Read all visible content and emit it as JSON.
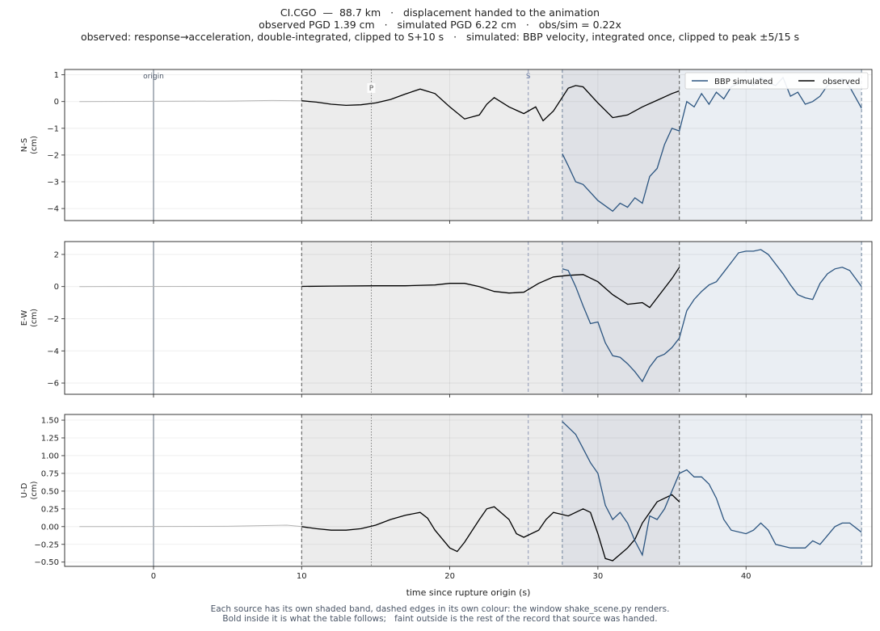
{
  "header": {
    "line1": "CI.CGO  —  88.7 km   ·   displacement handed to the animation",
    "line2": "observed PGD 1.39 cm   ·   simulated PGD 6.22 cm   ·   obs/sim = 0.22x",
    "line3": "observed: response→acceleration, double-integrated, clipped to S+10 s   ·   simulated: BBP velocity, integrated once, clipped to peak ±5/15 s"
  },
  "footer": {
    "line1": "Each source has its own shaded band, dashed edges in its own colour: the window shake_scene.py renders.",
    "line2": "Bold inside it is what the table follows;   faint outside is the rest of the record that source was handed."
  },
  "colors": {
    "simulated": "#2c5580",
    "observed": "#000000",
    "observed_band": "#ececec",
    "simulated_band": "#eaeef3",
    "overlap_band": "#dfe1e6",
    "origin_line": "#9aa3ad",
    "s_line": "#8f99b5"
  },
  "chart_data": {
    "type": "line",
    "xlabel": "time since rupture origin (s)",
    "xlim": [
      -6,
      48.5
    ],
    "xticks": [
      0,
      10,
      20,
      30,
      40
    ],
    "markers": {
      "origin": {
        "t": 0,
        "label": "origin"
      },
      "P": {
        "t": 14.7,
        "label": "P"
      },
      "S": {
        "t": 25.3,
        "label": "S"
      }
    },
    "windows": {
      "observed": [
        10.0,
        35.5
      ],
      "simulated": [
        27.6,
        47.8
      ]
    },
    "legend": [
      "BBP simulated",
      "observed"
    ],
    "legend_position": "top-right",
    "panels": [
      {
        "name": "N-S",
        "ylabel_line1": "N-S",
        "ylabel_line2": "(cm)",
        "ylim": [
          -4.45,
          1.2
        ],
        "yticks": [
          1,
          0,
          -1,
          -2,
          -3,
          -4
        ],
        "ytick_labels": [
          "1",
          "0",
          "−1",
          "−2",
          "−3",
          "−4"
        ],
        "observed": [
          [
            -5,
            0
          ],
          [
            0,
            0.01
          ],
          [
            5,
            0.02
          ],
          [
            8,
            0.04
          ],
          [
            10,
            0.03
          ],
          [
            11,
            -0.02
          ],
          [
            12,
            -0.1
          ],
          [
            13,
            -0.14
          ],
          [
            14,
            -0.12
          ],
          [
            15,
            -0.05
          ],
          [
            16,
            0.08
          ],
          [
            17,
            0.28
          ],
          [
            18,
            0.47
          ],
          [
            19,
            0.3
          ],
          [
            20,
            -0.2
          ],
          [
            21,
            -0.65
          ],
          [
            22,
            -0.5
          ],
          [
            22.5,
            -0.1
          ],
          [
            23,
            0.15
          ],
          [
            24,
            -0.2
          ],
          [
            25,
            -0.45
          ],
          [
            25.8,
            -0.2
          ],
          [
            26.3,
            -0.72
          ],
          [
            27,
            -0.35
          ],
          [
            28,
            0.5
          ],
          [
            28.5,
            0.6
          ],
          [
            29,
            0.55
          ],
          [
            30,
            -0.05
          ],
          [
            31,
            -0.6
          ],
          [
            32,
            -0.5
          ],
          [
            33,
            -0.2
          ],
          [
            34,
            0.05
          ],
          [
            35,
            0.3
          ],
          [
            35.5,
            0.4
          ]
        ],
        "simulated": [
          [
            27.6,
            -1.95
          ],
          [
            28,
            -2.4
          ],
          [
            28.5,
            -3.0
          ],
          [
            29,
            -3.1
          ],
          [
            29.5,
            -3.4
          ],
          [
            30,
            -3.7
          ],
          [
            30.5,
            -3.9
          ],
          [
            31,
            -4.1
          ],
          [
            31.5,
            -3.8
          ],
          [
            32,
            -3.95
          ],
          [
            32.5,
            -3.6
          ],
          [
            33,
            -3.8
          ],
          [
            33.5,
            -2.8
          ],
          [
            34,
            -2.5
          ],
          [
            34.5,
            -1.6
          ],
          [
            35,
            -1.0
          ],
          [
            35.5,
            -1.1
          ],
          [
            36,
            0
          ],
          [
            36.5,
            -0.2
          ],
          [
            37,
            0.3
          ],
          [
            37.5,
            -0.1
          ],
          [
            38,
            0.35
          ],
          [
            38.5,
            0.1
          ],
          [
            39,
            0.55
          ],
          [
            40,
            0.8
          ],
          [
            40.5,
            0.6
          ],
          [
            41,
            0.9
          ],
          [
            41.5,
            0.7
          ],
          [
            42,
            0.6
          ],
          [
            42.5,
            0.9
          ],
          [
            43,
            0.2
          ],
          [
            43.5,
            0.35
          ],
          [
            44,
            -0.1
          ],
          [
            44.5,
            0
          ],
          [
            45,
            0.2
          ],
          [
            45.5,
            0.6
          ],
          [
            46,
            0.75
          ],
          [
            46.5,
            0.85
          ],
          [
            47,
            0.55
          ],
          [
            47.8,
            -0.25
          ]
        ]
      },
      {
        "name": "E-W",
        "ylabel_line1": "E-W",
        "ylabel_line2": "(cm)",
        "ylim": [
          -6.7,
          2.8
        ],
        "yticks": [
          2,
          0,
          -2,
          -4,
          -6
        ],
        "ytick_labels": [
          "2",
          "0",
          "−2",
          "−4",
          "−6"
        ],
        "observed": [
          [
            -5,
            0
          ],
          [
            5,
            0.01
          ],
          [
            10,
            0.01
          ],
          [
            12,
            0.03
          ],
          [
            15,
            0.05
          ],
          [
            17,
            0.05
          ],
          [
            19,
            0.1
          ],
          [
            20,
            0.2
          ],
          [
            21,
            0.2
          ],
          [
            22,
            0
          ],
          [
            23,
            -0.3
          ],
          [
            24,
            -0.4
          ],
          [
            25,
            -0.35
          ],
          [
            26,
            0.2
          ],
          [
            27,
            0.6
          ],
          [
            28,
            0.7
          ],
          [
            29,
            0.75
          ],
          [
            30,
            0.3
          ],
          [
            31,
            -0.5
          ],
          [
            32,
            -1.1
          ],
          [
            33,
            -1.0
          ],
          [
            33.5,
            -1.3
          ],
          [
            34,
            -0.7
          ],
          [
            35,
            0.5
          ],
          [
            35.5,
            1.2
          ]
        ],
        "simulated": [
          [
            27.6,
            1.1
          ],
          [
            28,
            1.0
          ],
          [
            28.5,
            0
          ],
          [
            29,
            -1.2
          ],
          [
            29.5,
            -2.3
          ],
          [
            30,
            -2.2
          ],
          [
            30.5,
            -3.5
          ],
          [
            31,
            -4.3
          ],
          [
            31.5,
            -4.4
          ],
          [
            32,
            -4.8
          ],
          [
            32.5,
            -5.3
          ],
          [
            33,
            -5.9
          ],
          [
            33.5,
            -5.0
          ],
          [
            34,
            -4.4
          ],
          [
            34.5,
            -4.2
          ],
          [
            35,
            -3.8
          ],
          [
            35.5,
            -3.2
          ],
          [
            36,
            -1.5
          ],
          [
            36.5,
            -0.8
          ],
          [
            37,
            -0.3
          ],
          [
            37.5,
            0.1
          ],
          [
            38,
            0.3
          ],
          [
            38.5,
            0.9
          ],
          [
            39,
            1.5
          ],
          [
            39.5,
            2.1
          ],
          [
            40,
            2.2
          ],
          [
            40.5,
            2.2
          ],
          [
            41,
            2.3
          ],
          [
            41.5,
            2.0
          ],
          [
            42,
            1.4
          ],
          [
            42.5,
            0.8
          ],
          [
            43,
            0.1
          ],
          [
            43.5,
            -0.5
          ],
          [
            44,
            -0.7
          ],
          [
            44.5,
            -0.8
          ],
          [
            45,
            0.2
          ],
          [
            45.5,
            0.8
          ],
          [
            46,
            1.1
          ],
          [
            46.5,
            1.2
          ],
          [
            47,
            1.0
          ],
          [
            47.8,
            0
          ]
        ]
      },
      {
        "name": "U-D",
        "ylabel_line1": "U-D",
        "ylabel_line2": "(cm)",
        "ylim": [
          -0.56,
          1.58
        ],
        "yticks": [
          1.5,
          1.25,
          1.0,
          0.75,
          0.5,
          0.25,
          0.0,
          -0.25,
          -0.5
        ],
        "ytick_labels": [
          "1.50",
          "1.25",
          "1.00",
          "0.75",
          "0.50",
          "0.25",
          "0.00",
          "−0.25",
          "−0.50"
        ],
        "observed": [
          [
            -5,
            0
          ],
          [
            5,
            0.005
          ],
          [
            9,
            0.02
          ],
          [
            10,
            0
          ],
          [
            11,
            -0.03
          ],
          [
            12,
            -0.05
          ],
          [
            13,
            -0.05
          ],
          [
            14,
            -0.03
          ],
          [
            15,
            0.02
          ],
          [
            16,
            0.1
          ],
          [
            17,
            0.16
          ],
          [
            18,
            0.2
          ],
          [
            18.5,
            0.12
          ],
          [
            19,
            -0.05
          ],
          [
            20,
            -0.3
          ],
          [
            20.5,
            -0.35
          ],
          [
            21,
            -0.22
          ],
          [
            22,
            0.1
          ],
          [
            22.5,
            0.25
          ],
          [
            23,
            0.28
          ],
          [
            24,
            0.1
          ],
          [
            24.5,
            -0.1
          ],
          [
            25,
            -0.15
          ],
          [
            26,
            -0.05
          ],
          [
            26.5,
            0.1
          ],
          [
            27,
            0.2
          ],
          [
            28,
            0.15
          ],
          [
            29,
            0.25
          ],
          [
            29.5,
            0.2
          ],
          [
            30,
            -0.1
          ],
          [
            30.5,
            -0.45
          ],
          [
            31,
            -0.48
          ],
          [
            32,
            -0.3
          ],
          [
            32.5,
            -0.18
          ],
          [
            33,
            0.05
          ],
          [
            34,
            0.35
          ],
          [
            35,
            0.45
          ],
          [
            35.5,
            0.35
          ]
        ],
        "simulated": [
          [
            27.6,
            1.48
          ],
          [
            28,
            1.4
          ],
          [
            28.5,
            1.3
          ],
          [
            29,
            1.1
          ],
          [
            29.5,
            0.9
          ],
          [
            30,
            0.75
          ],
          [
            30.5,
            0.3
          ],
          [
            31,
            0.1
          ],
          [
            31.5,
            0.2
          ],
          [
            32,
            0.05
          ],
          [
            32.5,
            -0.2
          ],
          [
            33,
            -0.4
          ],
          [
            33.5,
            0.15
          ],
          [
            34,
            0.1
          ],
          [
            34.5,
            0.25
          ],
          [
            35,
            0.5
          ],
          [
            35.5,
            0.75
          ],
          [
            36,
            0.8
          ],
          [
            36.5,
            0.7
          ],
          [
            37,
            0.7
          ],
          [
            37.5,
            0.6
          ],
          [
            38,
            0.4
          ],
          [
            38.5,
            0.1
          ],
          [
            39,
            -0.05
          ],
          [
            40,
            -0.1
          ],
          [
            40.5,
            -0.05
          ],
          [
            41,
            0.05
          ],
          [
            41.5,
            -0.05
          ],
          [
            42,
            -0.25
          ],
          [
            43,
            -0.3
          ],
          [
            44,
            -0.3
          ],
          [
            44.5,
            -0.2
          ],
          [
            45,
            -0.25
          ],
          [
            46,
            0
          ],
          [
            46.5,
            0.05
          ],
          [
            47,
            0.05
          ],
          [
            47.8,
            -0.08
          ]
        ]
      }
    ]
  }
}
